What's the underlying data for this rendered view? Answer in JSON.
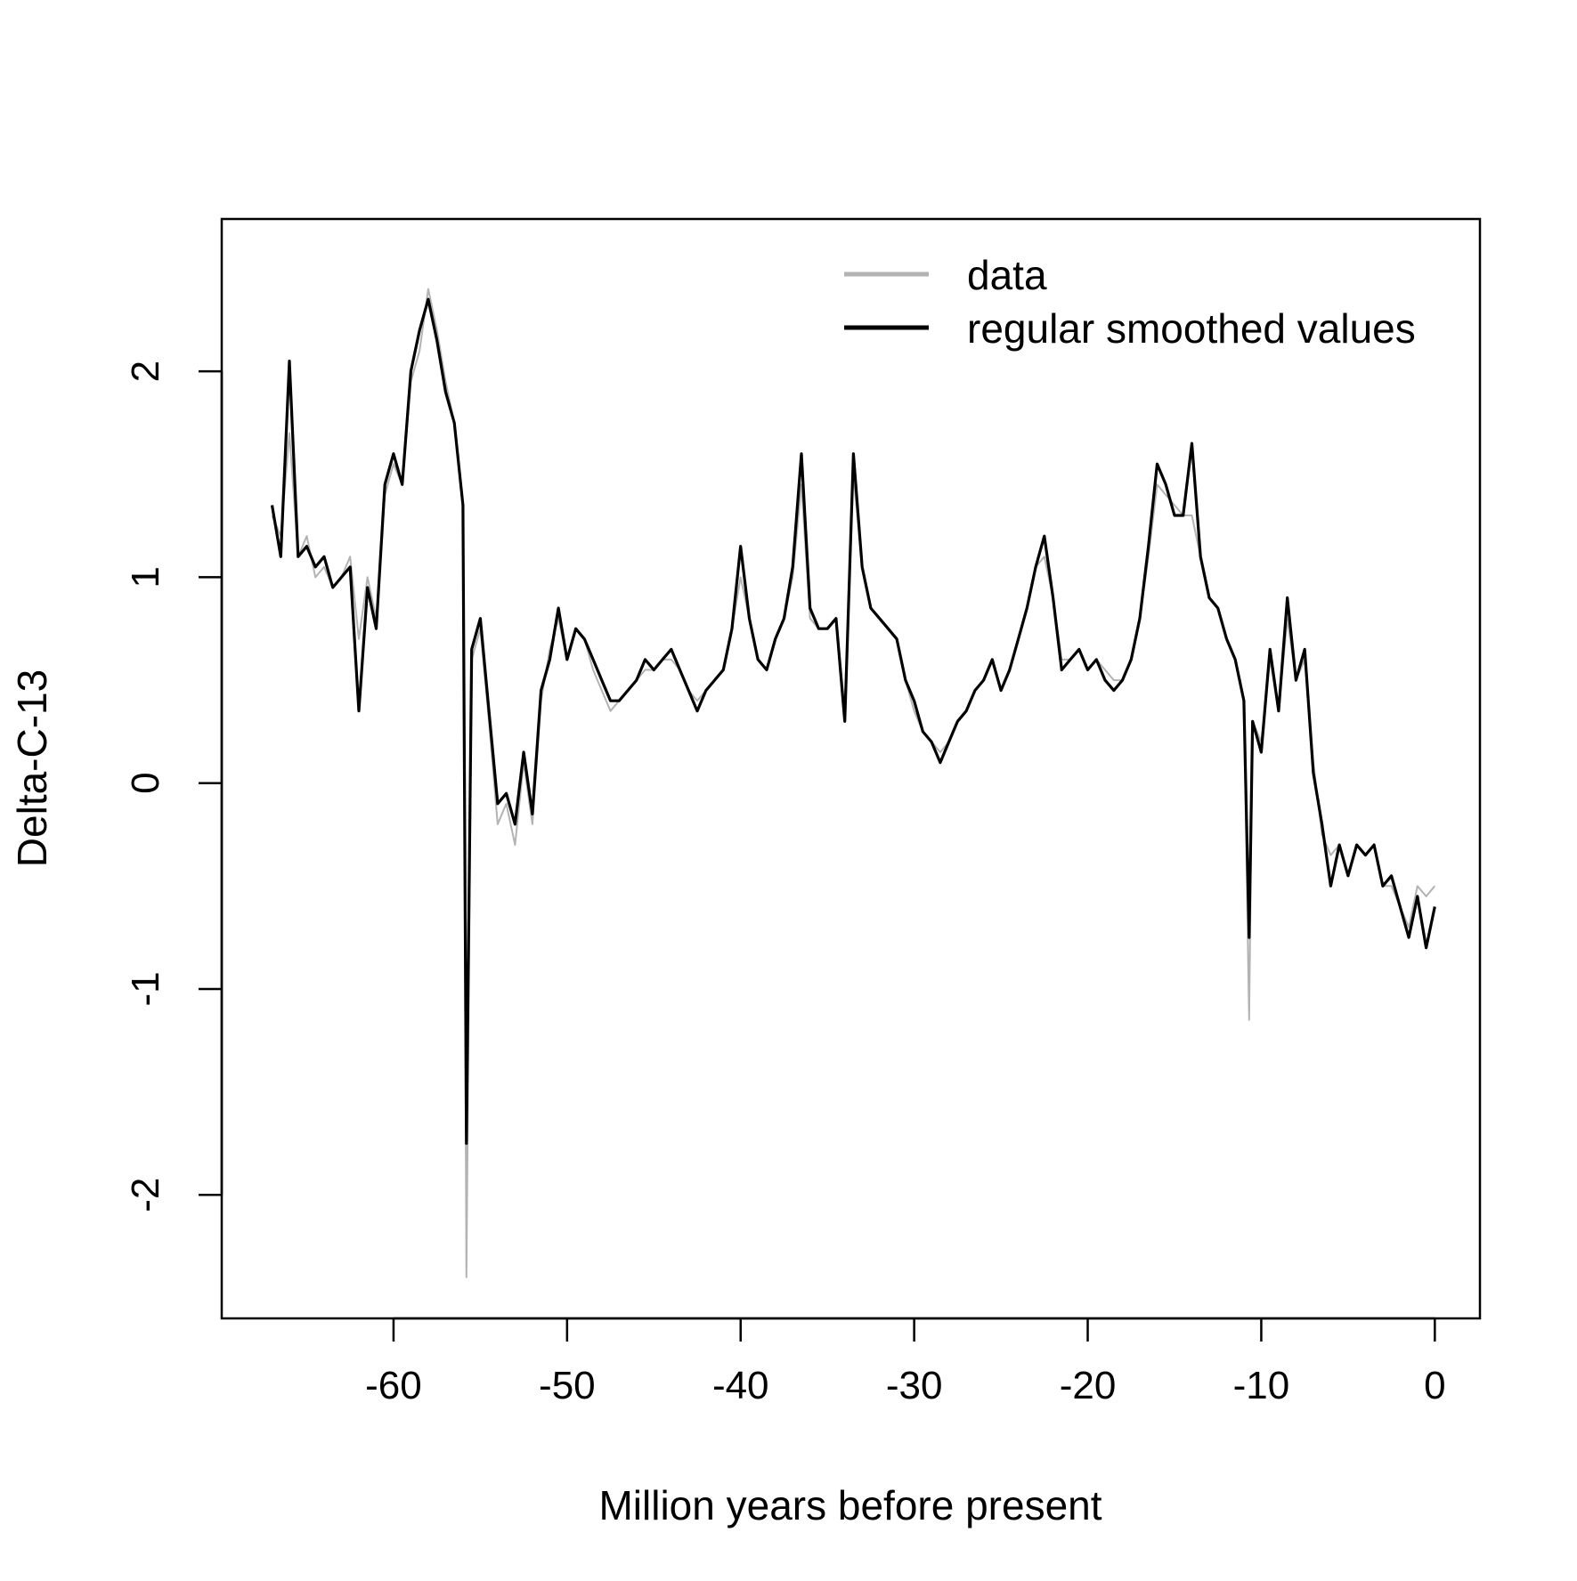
{
  "chart_data": {
    "type": "line",
    "title": "",
    "xlabel": "Million years before present",
    "ylabel": "Delta-C-13",
    "xlim": [
      -69.9,
      2.6
    ],
    "ylim": [
      -2.6,
      2.74
    ],
    "xticks": [
      -60,
      -50,
      -40,
      -30,
      -20,
      -10,
      0
    ],
    "xtick_labels": [
      "-60",
      "-50",
      "-40",
      "-30",
      "-20",
      "-10",
      "0"
    ],
    "yticks": [
      -2,
      -1,
      0,
      1,
      2
    ],
    "ytick_labels": [
      "-2",
      "-1",
      "0",
      "1",
      "2"
    ],
    "grid": false,
    "legend_position": "top-right",
    "legend": [
      {
        "label": "data",
        "color": "#b3b3b3"
      },
      {
        "label": "regular smoothed values",
        "color": "#000000"
      }
    ],
    "series": [
      {
        "name": "data",
        "color": "#b3b3b3",
        "x": [
          -67,
          -66.5,
          -66,
          -65.5,
          -65,
          -64.5,
          -64,
          -63.5,
          -63,
          -62.5,
          -62,
          -61.5,
          -61,
          -60.5,
          -60,
          -59.5,
          -59,
          -58.5,
          -58,
          -57.5,
          -57,
          -56.5,
          -56,
          -55.8,
          -55.5,
          -55,
          -54.5,
          -54,
          -53.5,
          -53,
          -52.5,
          -52,
          -51.5,
          -51,
          -50.5,
          -50,
          -49.5,
          -49,
          -48.5,
          -48,
          -47.5,
          -47,
          -46.5,
          -46,
          -45.5,
          -45,
          -44.5,
          -44,
          -43.5,
          -43,
          -42.5,
          -42,
          -41.5,
          -41,
          -40.5,
          -40,
          -39.5,
          -39,
          -38.5,
          -38,
          -37.5,
          -37,
          -36.5,
          -36,
          -35.5,
          -35,
          -34.5,
          -34,
          -33.5,
          -33,
          -32.5,
          -32,
          -31.5,
          -31,
          -30.5,
          -30,
          -29.5,
          -29,
          -28.5,
          -28,
          -27.5,
          -27,
          -26.5,
          -26,
          -25.5,
          -25,
          -24.5,
          -24,
          -23.5,
          -23,
          -22.5,
          -22,
          -21.5,
          -21,
          -20.5,
          -20,
          -19.5,
          -19,
          -18.5,
          -18,
          -17.5,
          -17,
          -16.5,
          -16,
          -15.5,
          -15,
          -14.5,
          -14,
          -13.5,
          -13,
          -12.5,
          -12,
          -11.5,
          -11,
          -10.7,
          -10.5,
          -10,
          -9.5,
          -9,
          -8.5,
          -8,
          -7.5,
          -7,
          -6.5,
          -6,
          -5.5,
          -5,
          -4.5,
          -4,
          -3.5,
          -3,
          -2.5,
          -2,
          -1.5,
          -1,
          -0.5,
          0
        ],
        "y": [
          1.3,
          1.2,
          1.7,
          1.1,
          1.2,
          1.0,
          1.05,
          0.95,
          1.0,
          1.1,
          0.7,
          1.0,
          0.8,
          1.4,
          1.55,
          1.45,
          1.95,
          2.1,
          2.4,
          2.2,
          1.95,
          1.75,
          1.35,
          -2.4,
          0.6,
          0.75,
          0.3,
          -0.2,
          -0.1,
          -0.3,
          0.1,
          -0.2,
          0.4,
          0.65,
          0.8,
          0.6,
          0.75,
          0.7,
          0.55,
          0.45,
          0.35,
          0.4,
          0.45,
          0.5,
          0.55,
          0.55,
          0.6,
          0.6,
          0.55,
          0.45,
          0.4,
          0.45,
          0.5,
          0.55,
          0.75,
          1.0,
          0.8,
          0.6,
          0.55,
          0.7,
          0.8,
          1.0,
          1.45,
          0.8,
          0.75,
          0.75,
          0.8,
          0.35,
          1.5,
          1.05,
          0.85,
          0.8,
          0.75,
          0.7,
          0.5,
          0.35,
          0.25,
          0.2,
          0.15,
          0.2,
          0.3,
          0.35,
          0.45,
          0.5,
          0.6,
          0.45,
          0.55,
          0.7,
          0.85,
          1.05,
          1.1,
          0.9,
          0.6,
          0.6,
          0.65,
          0.55,
          0.6,
          0.55,
          0.5,
          0.5,
          0.6,
          0.8,
          1.1,
          1.45,
          1.4,
          1.35,
          1.3,
          1.3,
          1.1,
          0.9,
          0.85,
          0.7,
          0.6,
          0.4,
          -1.15,
          0.3,
          0.2,
          0.6,
          0.35,
          0.8,
          0.5,
          0.6,
          0.1,
          -0.25,
          -0.35,
          -0.3,
          -0.45,
          -0.3,
          -0.35,
          -0.3,
          -0.5,
          -0.5,
          -0.6,
          -0.7,
          -0.5,
          -0.55,
          -0.5
        ]
      },
      {
        "name": "regular smoothed values",
        "color": "#000000",
        "x": [
          -67,
          -66.5,
          -66,
          -65.5,
          -65,
          -64.5,
          -64,
          -63.5,
          -63,
          -62.5,
          -62,
          -61.5,
          -61,
          -60.5,
          -60,
          -59.5,
          -59,
          -58.5,
          -58,
          -57.5,
          -57,
          -56.5,
          -56,
          -55.8,
          -55.5,
          -55,
          -54.5,
          -54,
          -53.5,
          -53,
          -52.5,
          -52,
          -51.5,
          -51,
          -50.5,
          -50,
          -49.5,
          -49,
          -48.5,
          -48,
          -47.5,
          -47,
          -46.5,
          -46,
          -45.5,
          -45,
          -44.5,
          -44,
          -43.5,
          -43,
          -42.5,
          -42,
          -41.5,
          -41,
          -40.5,
          -40,
          -39.5,
          -39,
          -38.5,
          -38,
          -37.5,
          -37,
          -36.5,
          -36,
          -35.5,
          -35,
          -34.5,
          -34,
          -33.5,
          -33,
          -32.5,
          -32,
          -31.5,
          -31,
          -30.5,
          -30,
          -29.5,
          -29,
          -28.5,
          -28,
          -27.5,
          -27,
          -26.5,
          -26,
          -25.5,
          -25,
          -24.5,
          -24,
          -23.5,
          -23,
          -22.5,
          -22,
          -21.5,
          -21,
          -20.5,
          -20,
          -19.5,
          -19,
          -18.5,
          -18,
          -17.5,
          -17,
          -16.5,
          -16,
          -15.5,
          -15,
          -14.5,
          -14,
          -13.5,
          -13,
          -12.5,
          -12,
          -11.5,
          -11,
          -10.7,
          -10.5,
          -10,
          -9.5,
          -9,
          -8.5,
          -8,
          -7.5,
          -7,
          -6.5,
          -6,
          -5.5,
          -5,
          -4.5,
          -4,
          -3.5,
          -3,
          -2.5,
          -2,
          -1.5,
          -1,
          -0.5,
          0
        ],
        "y": [
          1.35,
          1.1,
          2.05,
          1.1,
          1.15,
          1.05,
          1.1,
          0.95,
          1.0,
          1.05,
          0.35,
          0.95,
          0.75,
          1.45,
          1.6,
          1.45,
          2.0,
          2.2,
          2.35,
          2.15,
          1.9,
          1.75,
          1.35,
          -1.75,
          0.65,
          0.8,
          0.35,
          -0.1,
          -0.05,
          -0.2,
          0.15,
          -0.15,
          0.45,
          0.6,
          0.85,
          0.6,
          0.75,
          0.7,
          0.6,
          0.5,
          0.4,
          0.4,
          0.45,
          0.5,
          0.6,
          0.55,
          0.6,
          0.65,
          0.55,
          0.45,
          0.35,
          0.45,
          0.5,
          0.55,
          0.75,
          1.15,
          0.8,
          0.6,
          0.55,
          0.7,
          0.8,
          1.05,
          1.6,
          0.85,
          0.75,
          0.75,
          0.8,
          0.3,
          1.6,
          1.05,
          0.85,
          0.8,
          0.75,
          0.7,
          0.5,
          0.4,
          0.25,
          0.2,
          0.1,
          0.2,
          0.3,
          0.35,
          0.45,
          0.5,
          0.6,
          0.45,
          0.55,
          0.7,
          0.85,
          1.05,
          1.2,
          0.9,
          0.55,
          0.6,
          0.65,
          0.55,
          0.6,
          0.5,
          0.45,
          0.5,
          0.6,
          0.8,
          1.15,
          1.55,
          1.45,
          1.3,
          1.3,
          1.65,
          1.1,
          0.9,
          0.85,
          0.7,
          0.6,
          0.4,
          -0.75,
          0.3,
          0.15,
          0.65,
          0.35,
          0.9,
          0.5,
          0.65,
          0.05,
          -0.2,
          -0.5,
          -0.3,
          -0.45,
          -0.3,
          -0.35,
          -0.3,
          -0.5,
          -0.45,
          -0.6,
          -0.75,
          -0.55,
          -0.8,
          -0.6
        ]
      }
    ]
  }
}
